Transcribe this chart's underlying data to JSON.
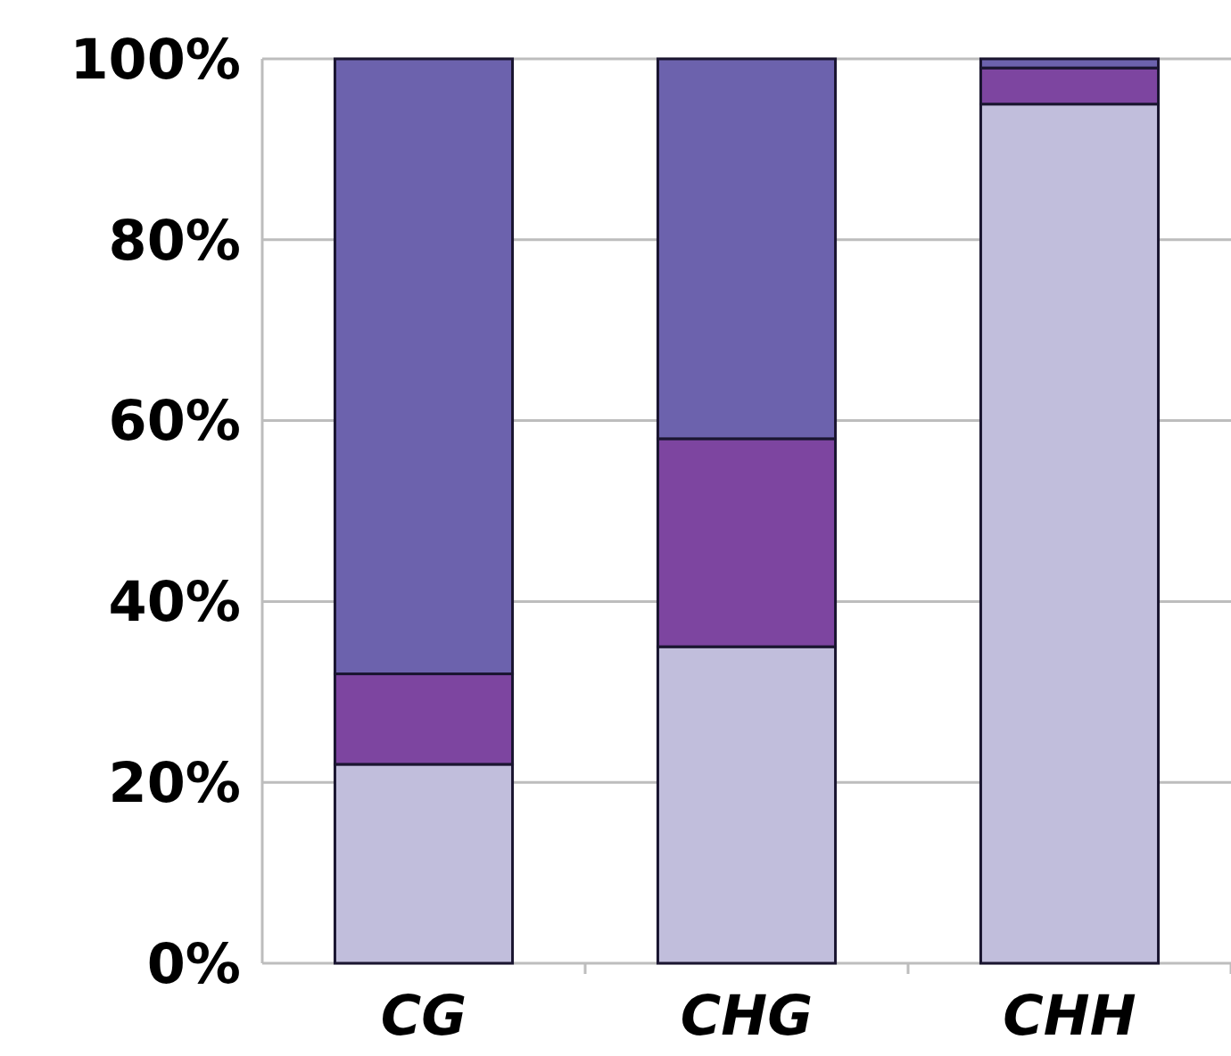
{
  "chart_data": {
    "type": "bar",
    "stacked": true,
    "categories": [
      "CG",
      "CHG",
      "CHH"
    ],
    "series": [
      {
        "color": "#c1bedc",
        "values": [
          22,
          35,
          95
        ]
      },
      {
        "color": "#7d45a0",
        "values": [
          10,
          23,
          4
        ]
      },
      {
        "color": "#6c62ad",
        "values": [
          68,
          42,
          1
        ]
      }
    ],
    "ylim": [
      0,
      100
    ],
    "yticks": [
      {
        "value": 0,
        "label": "0%"
      },
      {
        "value": 20,
        "label": "20%"
      },
      {
        "value": 40,
        "label": "40%"
      },
      {
        "value": 60,
        "label": "60%"
      },
      {
        "value": 80,
        "label": "80%"
      },
      {
        "value": 100,
        "label": "100%"
      }
    ],
    "grid": "y"
  }
}
